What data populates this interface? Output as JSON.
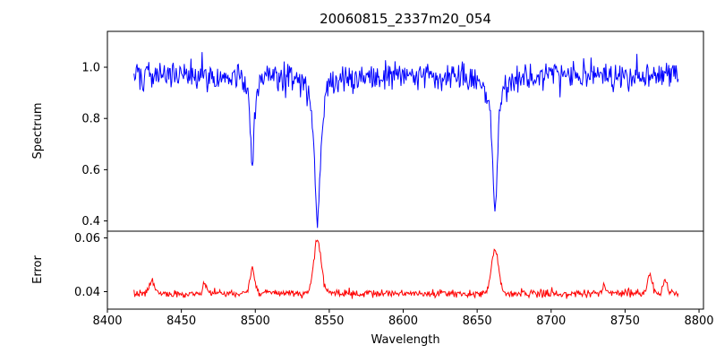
{
  "figure": {
    "title": "20060815_2337m20_054",
    "xlabel": "Wavelength"
  },
  "chart_data": {
    "type": "line",
    "title": "20060815_2337m20_054",
    "xlabel": "Wavelength",
    "grid": false,
    "legend": "none",
    "xlim": [
      8400,
      8803
    ],
    "x_range": [
      8418,
      8786
    ],
    "sample_step": 0.5,
    "x_ticks": [
      8400,
      8450,
      8500,
      8550,
      8600,
      8650,
      8700,
      8750,
      8800
    ],
    "x_tick_labels": [
      "8400",
      "8450",
      "8500",
      "8550",
      "8600",
      "8650",
      "8700",
      "8750",
      "8800"
    ],
    "panels": [
      {
        "name": "spectrum",
        "ylabel": "Spectrum",
        "color": "#0000ff",
        "ylim": [
          0.36,
          1.14
        ],
        "y_ticks": [
          0.4,
          0.6,
          0.8,
          1.0
        ],
        "y_tick_labels": [
          "0.4",
          "0.6",
          "0.8",
          "1.0"
        ],
        "continuum": 0.97,
        "noise_sigma": 0.028,
        "seed": 101,
        "features": [
          {
            "center": 8498,
            "amplitude": -0.345,
            "width": 1.6,
            "shape": "lorentzian"
          },
          {
            "center": 8542,
            "amplitude": -0.575,
            "width": 2.4,
            "shape": "lorentzian"
          },
          {
            "center": 8662,
            "amplitude": -0.525,
            "width": 2.1,
            "shape": "lorentzian"
          }
        ]
      },
      {
        "name": "error",
        "ylabel": "Error",
        "color": "#ff0000",
        "ylim": [
          0.0335,
          0.0625
        ],
        "y_ticks": [
          0.04,
          0.06
        ],
        "y_tick_labels": [
          "0.04",
          "0.06"
        ],
        "continuum": 0.0393,
        "noise_sigma": 0.0007,
        "seed": 202,
        "features": [
          {
            "center": 8430,
            "amplitude": 0.0042,
            "width": 1.8,
            "shape": "gaussian"
          },
          {
            "center": 8466,
            "amplitude": 0.004,
            "width": 1.2,
            "shape": "gaussian"
          },
          {
            "center": 8498,
            "amplitude": 0.0082,
            "width": 1.8,
            "shape": "gaussian"
          },
          {
            "center": 8542,
            "amplitude": 0.02,
            "width": 2.6,
            "shape": "gaussian"
          },
          {
            "center": 8662,
            "amplitude": 0.0168,
            "width": 2.4,
            "shape": "gaussian"
          },
          {
            "center": 8736,
            "amplitude": 0.0028,
            "width": 1.5,
            "shape": "gaussian"
          },
          {
            "center": 8767,
            "amplitude": 0.0072,
            "width": 1.6,
            "shape": "gaussian"
          },
          {
            "center": 8777,
            "amplitude": 0.0055,
            "width": 1.3,
            "shape": "gaussian"
          }
        ]
      }
    ]
  }
}
